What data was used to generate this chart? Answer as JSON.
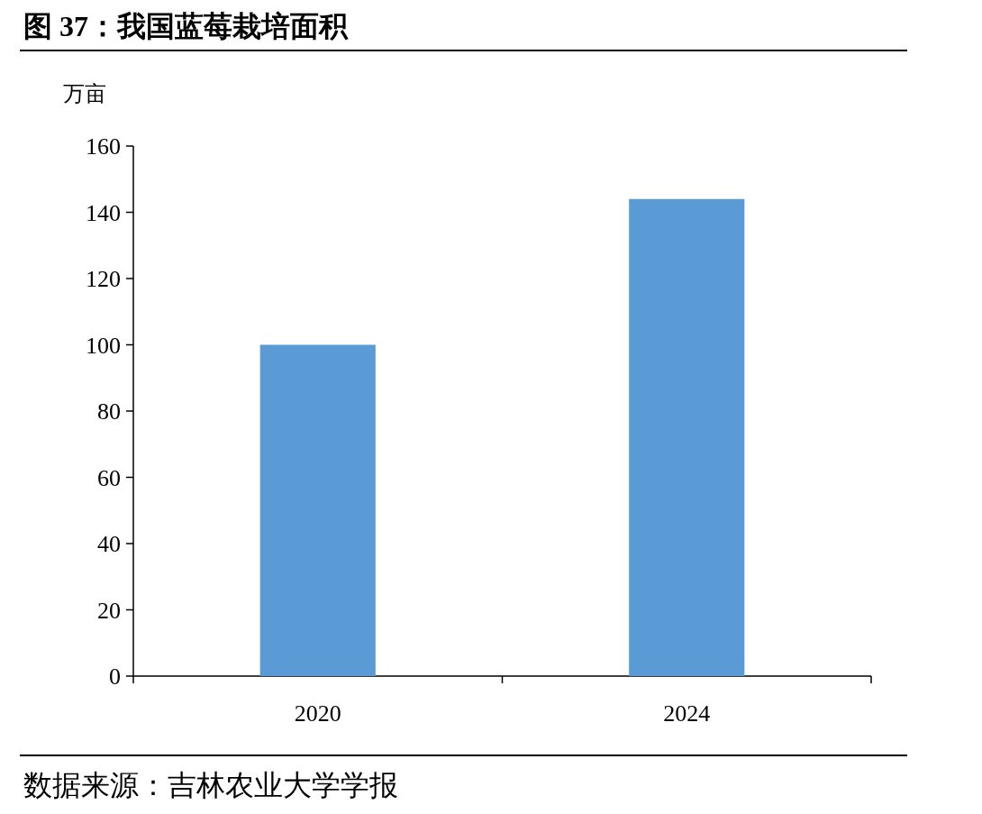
{
  "chart_data": {
    "type": "bar",
    "title": "图 37：我国蓝莓栽培面积",
    "ylabel": "万亩",
    "categories": [
      "2020",
      "2024"
    ],
    "values": [
      100,
      144
    ],
    "color": "#5b9bd5",
    "ylim": [
      0,
      160
    ],
    "yticks": [
      0,
      20,
      40,
      60,
      80,
      100,
      120,
      140,
      160
    ],
    "annotations": [
      "数据来源：吉林农业大学学报"
    ]
  }
}
